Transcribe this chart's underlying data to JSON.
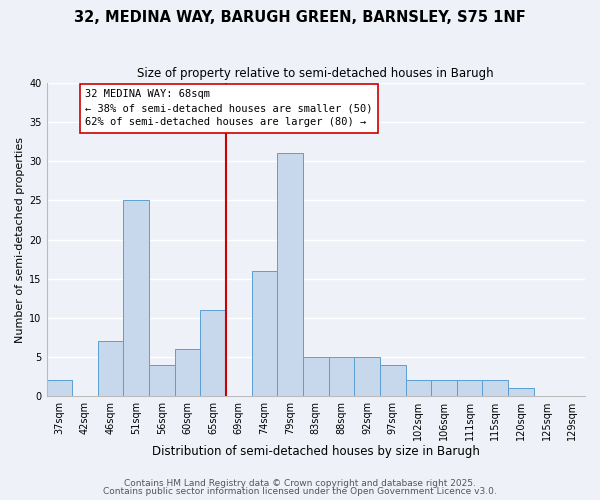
{
  "title": "32, MEDINA WAY, BARUGH GREEN, BARNSLEY, S75 1NF",
  "subtitle": "Size of property relative to semi-detached houses in Barugh",
  "xlabel": "Distribution of semi-detached houses by size in Barugh",
  "ylabel": "Number of semi-detached properties",
  "bin_labels": [
    "37sqm",
    "42sqm",
    "46sqm",
    "51sqm",
    "56sqm",
    "60sqm",
    "65sqm",
    "69sqm",
    "74sqm",
    "79sqm",
    "83sqm",
    "88sqm",
    "92sqm",
    "97sqm",
    "102sqm",
    "106sqm",
    "111sqm",
    "115sqm",
    "120sqm",
    "125sqm",
    "129sqm"
  ],
  "bar_heights": [
    2,
    0,
    7,
    25,
    4,
    6,
    11,
    0,
    16,
    31,
    5,
    5,
    5,
    4,
    2,
    2,
    2,
    2,
    1,
    0,
    0
  ],
  "bar_color": "#c8d8ec",
  "bar_edge_color": "#5a9fd4",
  "vline_color": "#cc0000",
  "annotation_line1": "32 MEDINA WAY: 68sqm",
  "annotation_line2": "← 38% of semi-detached houses are smaller (50)",
  "annotation_line3": "62% of semi-detached houses are larger (80) →",
  "annotation_box_color": "#ffffff",
  "annotation_box_edge_color": "#cc0000",
  "ylim": [
    0,
    40
  ],
  "yticks": [
    0,
    5,
    10,
    15,
    20,
    25,
    30,
    35,
    40
  ],
  "footer1": "Contains HM Land Registry data © Crown copyright and database right 2025.",
  "footer2": "Contains public sector information licensed under the Open Government Licence v3.0.",
  "background_color": "#eef2f8",
  "grid_color": "#ffffff",
  "title_fontsize": 10.5,
  "subtitle_fontsize": 8.5,
  "xlabel_fontsize": 8.5,
  "ylabel_fontsize": 8,
  "tick_fontsize": 7,
  "annotation_fontsize": 7.5,
  "footer_fontsize": 6.5
}
